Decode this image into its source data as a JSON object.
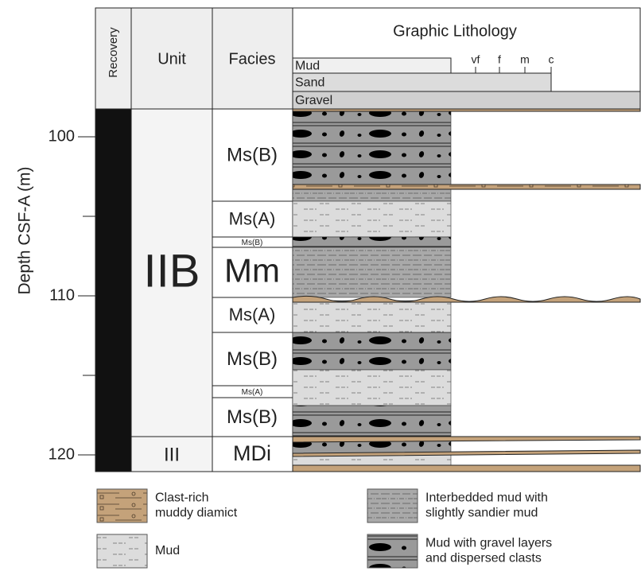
{
  "axis": {
    "label": "Depth CSF-A (m)",
    "ticks": [
      "100",
      "110",
      "120"
    ]
  },
  "header": {
    "recovery": "Recovery",
    "unit": "Unit",
    "facies": "Facies",
    "lithology": "Graphic Lithology",
    "grain_sizes": [
      "Mud",
      "Sand",
      "Gravel"
    ],
    "sand_classes": [
      "vf",
      "f",
      "m",
      "c"
    ]
  },
  "units": [
    "IIB",
    "III"
  ],
  "facies": [
    "Ms(B)",
    "Ms(A)",
    "Ms(B)",
    "Mm",
    "Ms(A)",
    "Ms(B)",
    "Ms(A)",
    "Ms(B)",
    "MDi"
  ],
  "legend": [
    {
      "label": [
        "Clast-rich",
        "muddy diamict"
      ]
    },
    {
      "label": [
        "Mud"
      ]
    },
    {
      "label": [
        "Interbedded mud with",
        "slightly sandier mud"
      ]
    },
    {
      "label": [
        "Mud with gravel layers",
        "and dispersed clasts"
      ]
    }
  ]
}
